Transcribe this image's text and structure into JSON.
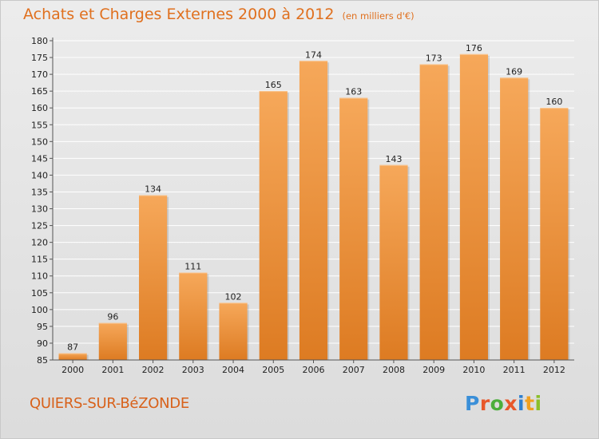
{
  "title": "Achats et Charges Externes 2000 à 2012",
  "unit": "(en milliers d'€)",
  "commune": "QUIERS-SUR-BéZONDE",
  "logo": {
    "letters": [
      "P",
      "r",
      "o",
      "x",
      "i",
      "t",
      "i"
    ],
    "colors": [
      "#3a8fd8",
      "#e8572a",
      "#4cae3c",
      "#e8572a",
      "#2f7fcf",
      "#f0a020",
      "#8bbf2a"
    ]
  },
  "colors": {
    "title": "#e0701e",
    "bar_light": "#f6a85a",
    "bar_dark": "#dd7b22",
    "grid": "#ffffff",
    "background_top": "#ececec",
    "background_bottom": "#dcdcdc"
  },
  "chart_data": {
    "type": "bar",
    "title": "Achats et Charges Externes 2000 à 2012",
    "subtitle": "(en milliers d'€)",
    "xlabel": "",
    "ylabel": "",
    "categories": [
      "2000",
      "2001",
      "2002",
      "2003",
      "2004",
      "2005",
      "2006",
      "2007",
      "2008",
      "2009",
      "2010",
      "2011",
      "2012"
    ],
    "values": [
      87,
      96,
      134,
      111,
      102,
      165,
      174,
      163,
      143,
      173,
      176,
      169,
      160
    ],
    "ylim": [
      85,
      180
    ],
    "yticks": [
      85,
      90,
      95,
      100,
      105,
      110,
      115,
      120,
      125,
      130,
      135,
      140,
      145,
      150,
      155,
      160,
      165,
      170,
      175,
      180
    ],
    "grid": true,
    "legend": "none"
  }
}
